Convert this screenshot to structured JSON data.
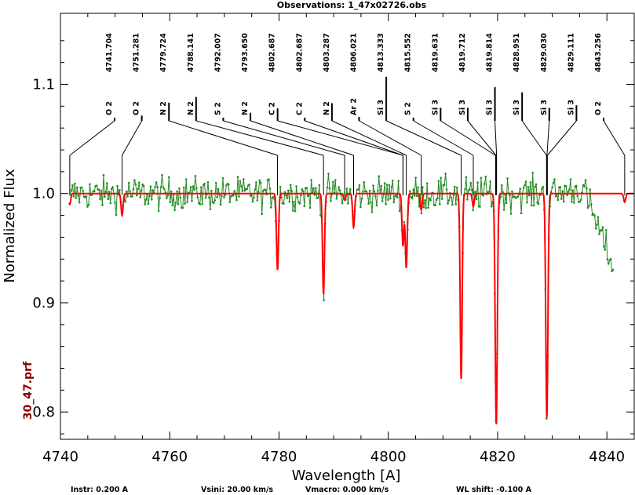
{
  "chart_data": {
    "type": "line",
    "title": "Observations: 1_47x02726.obs",
    "xlabel": "Wavelength [A]",
    "ylabel": "Normalized Flux",
    "xlim": [
      4740,
      4845
    ],
    "ylim": [
      0.775,
      1.165
    ],
    "x_ticks": [
      4740,
      4760,
      4780,
      4800,
      4820,
      4840
    ],
    "y_ticks": [
      0.8,
      0.9,
      1.0,
      1.1
    ],
    "y_tick_labels": [
      "0.8",
      "0.9",
      "1.0",
      "1.1"
    ],
    "grid": false,
    "side_label": "30_47.prf",
    "footer": {
      "instr": "Instr: 0.200 A",
      "vsini": "Vsini:   20.00 km/s",
      "vmacro": "Vmacro:   0.000 km/s",
      "wlshift": "WL shift:   -0.100 A"
    },
    "lines": [
      {
        "ion": "O 2",
        "wl": "4741.704",
        "x": 4741.704,
        "depth": 0.01
      },
      {
        "ion": "O 2",
        "wl": "4751.281",
        "x": 4751.281,
        "depth": 0.02
      },
      {
        "ion": "N 2",
        "wl": "4779.724",
        "x": 4779.724,
        "depth": 0.07
      },
      {
        "ion": "N 2",
        "wl": "4788.141",
        "x": 4788.141,
        "depth": 0.092
      },
      {
        "ion": "S 2",
        "wl": "4792.007",
        "x": 4792.007,
        "depth": 0.006
      },
      {
        "ion": "N 2",
        "wl": "4793.650",
        "x": 4793.65,
        "depth": 0.031
      },
      {
        "ion": "C 2",
        "wl": "4802.687",
        "x": 4802.687,
        "depth": 0.048
      },
      {
        "ion": "C 2",
        "wl": "4802.687",
        "x": 4802.687,
        "depth": 0.0
      },
      {
        "ion": "N 2",
        "wl": "4803.287",
        "x": 4803.287,
        "depth": 0.068
      },
      {
        "ion": "Ar 2",
        "wl": "4806.021",
        "x": 4806.021,
        "depth": 0.015
      },
      {
        "ion": "Si 3",
        "wl": "4813.333",
        "x": 4813.333,
        "depth": 0.17
      },
      {
        "ion": "S 2",
        "wl": "4815.552",
        "x": 4815.552,
        "depth": 0.012
      },
      {
        "ion": "Si 3",
        "wl": "4819.631",
        "x": 4819.631,
        "depth": 0.05
      },
      {
        "ion": "Si 3",
        "wl": "4819.712",
        "x": 4819.712,
        "depth": 0.05
      },
      {
        "ion": "Si 3",
        "wl": "4819.814",
        "x": 4819.814,
        "depth": 0.13
      },
      {
        "ion": "Si 3",
        "wl": "4828.951",
        "x": 4828.951,
        "depth": 0.11
      },
      {
        "ion": "Si 3",
        "wl": "4829.030",
        "x": 4829.03,
        "depth": 0.05
      },
      {
        "ion": "Si 3",
        "wl": "4829.111",
        "x": 4829.111,
        "depth": 0.06
      },
      {
        "ion": "O 2",
        "wl": "4843.256",
        "x": 4843.256,
        "depth": 0.008
      }
    ],
    "series": [
      {
        "color": "#228b22",
        "role": "observed"
      },
      {
        "color": "#ff0000",
        "role": "model"
      }
    ]
  }
}
